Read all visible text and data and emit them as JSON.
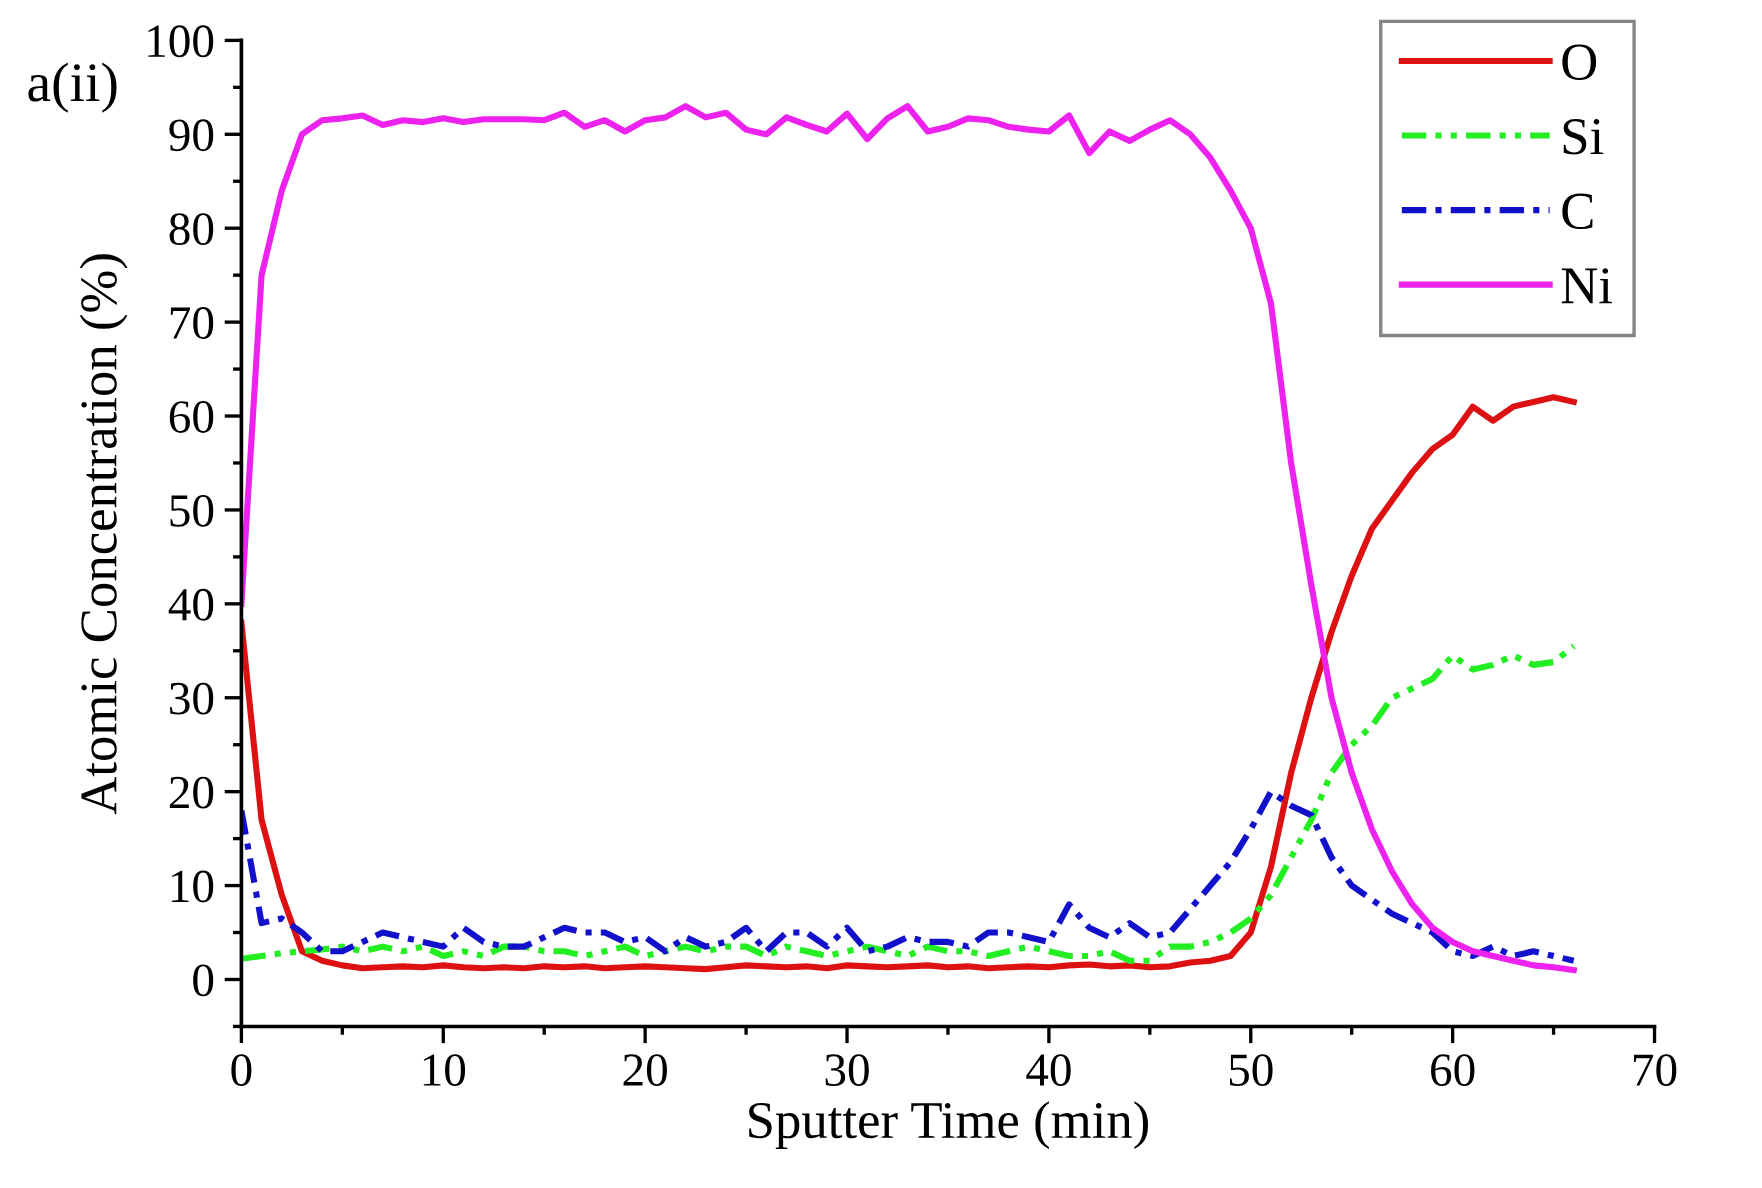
{
  "chart_data": {
    "type": "line",
    "xlabel": "Sputter Time (min)",
    "ylabel": "Atomic Concentration (%)",
    "annotations": [
      "a(ii)"
    ],
    "x": [
      0,
      1,
      2,
      3,
      4,
      5,
      6,
      7,
      8,
      9,
      10,
      11,
      12,
      13,
      14,
      15,
      16,
      17,
      18,
      19,
      20,
      21,
      22,
      23,
      24,
      25,
      26,
      27,
      28,
      29,
      30,
      31,
      32,
      33,
      34,
      35,
      36,
      37,
      38,
      39,
      40,
      41,
      42,
      43,
      44,
      45,
      46,
      47,
      48,
      49,
      50,
      51,
      52,
      53,
      54,
      55,
      56,
      57,
      58,
      59,
      60,
      61,
      62,
      63,
      64,
      65,
      66
    ],
    "series": [
      {
        "name": "O",
        "color": "#dd1111",
        "line_style": "solid",
        "values": [
          38,
          17,
          9,
          3,
          2,
          1.5,
          1.2,
          1.3,
          1.4,
          1.3,
          1.5,
          1.3,
          1.2,
          1.3,
          1.2,
          1.4,
          1.3,
          1.4,
          1.2,
          1.3,
          1.4,
          1.3,
          1.2,
          1.1,
          1.3,
          1.5,
          1.4,
          1.3,
          1.4,
          1.2,
          1.5,
          1.4,
          1.3,
          1.4,
          1.5,
          1.3,
          1.4,
          1.2,
          1.3,
          1.4,
          1.3,
          1.5,
          1.6,
          1.4,
          1.5,
          1.3,
          1.4,
          1.8,
          2,
          2.5,
          5,
          12,
          22,
          30,
          37,
          43,
          48,
          51,
          54,
          56.5,
          58,
          61,
          59.5,
          61,
          61.5,
          62,
          61.5
        ]
      },
      {
        "name": "Si",
        "color": "#22ee22",
        "line_style": "dashdotdot",
        "values": [
          2.2,
          2.5,
          2.8,
          3,
          3.2,
          3.5,
          3,
          3.5,
          3,
          3.5,
          2.5,
          3,
          2.5,
          3.5,
          3.5,
          3,
          3,
          2.5,
          3,
          3.5,
          2.5,
          3,
          3.5,
          3,
          3.5,
          3.5,
          2.5,
          3.5,
          3,
          2.5,
          3,
          3.5,
          3,
          2.5,
          3.5,
          3,
          3,
          2.5,
          3,
          3.5,
          3,
          2.5,
          2.5,
          3,
          2,
          2,
          3.5,
          3.5,
          4,
          5,
          6.5,
          9,
          13,
          17,
          22,
          25,
          27,
          30,
          31,
          32,
          34.5,
          33,
          33.5,
          34.5,
          33.5,
          33.8,
          35.5
        ]
      },
      {
        "name": "C",
        "color": "#1111cc",
        "line_style": "dashdot",
        "values": [
          18,
          6,
          6.5,
          5,
          3,
          3,
          4,
          5,
          4.5,
          4,
          3.5,
          5.5,
          4,
          3.5,
          3.5,
          4.5,
          5.5,
          5,
          5,
          4,
          4.5,
          3,
          4.5,
          3.5,
          4,
          5.5,
          3,
          5,
          5,
          3.5,
          5.5,
          3,
          3.5,
          4.5,
          4,
          4,
          3.5,
          5,
          5,
          4.5,
          4,
          8,
          5.5,
          4.5,
          6,
          4.5,
          5,
          7.5,
          10,
          12.5,
          16,
          20,
          18.5,
          17.5,
          13,
          10,
          8.5,
          7,
          6,
          5,
          3,
          2.5,
          3.5,
          2.5,
          3,
          2.5,
          2
        ]
      },
      {
        "name": "Ni",
        "color": "#ee22ee",
        "line_style": "solid",
        "values": [
          40,
          75,
          84,
          90,
          91.5,
          91.7,
          92,
          91,
          91.5,
          91.3,
          91.7,
          91.3,
          91.6,
          91.6,
          91.6,
          91.5,
          92.3,
          90.8,
          91.5,
          90.3,
          91.5,
          91.8,
          93,
          91.8,
          92.3,
          90.5,
          90,
          91.8,
          91,
          90.3,
          92.2,
          89.5,
          91.7,
          93,
          90.3,
          90.8,
          91.7,
          91.5,
          90.8,
          90.5,
          90.3,
          92,
          88,
          90.3,
          89.3,
          90.5,
          91.5,
          90,
          87.5,
          84,
          80,
          72,
          55,
          42,
          30,
          22,
          16,
          11.5,
          8,
          5.5,
          4,
          3,
          2.5,
          2,
          1.5,
          1.3,
          1
        ]
      }
    ],
    "xlim": [
      0,
      70
    ],
    "xticks": [
      0,
      10,
      20,
      30,
      40,
      50,
      60,
      70
    ],
    "ylim": [
      -5,
      100
    ],
    "yticks": [
      0,
      10,
      20,
      30,
      40,
      50,
      60,
      70,
      80,
      90,
      100
    ],
    "grid": false,
    "legend": "top right",
    "marker": "none"
  }
}
